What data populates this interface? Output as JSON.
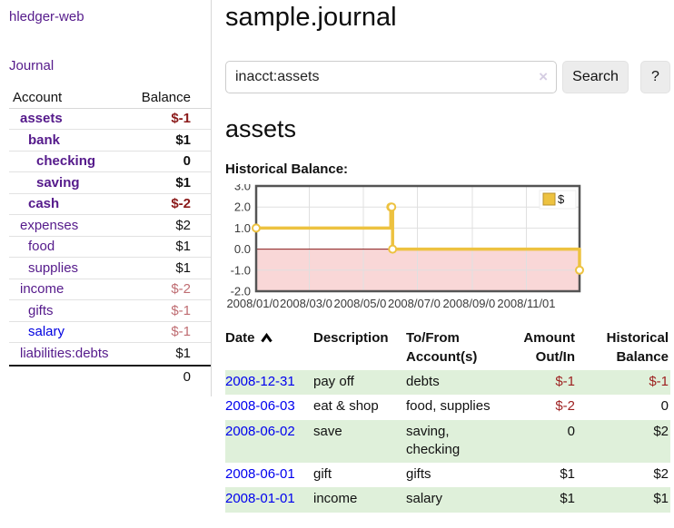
{
  "app": {
    "title": "hledger-web"
  },
  "sidebar": {
    "journal_link": "Journal",
    "account_header": "Account",
    "balance_header": "Balance",
    "accounts": [
      {
        "name": "assets",
        "balance": "$-1"
      },
      {
        "name": "bank",
        "balance": "$1"
      },
      {
        "name": "checking",
        "balance": "0"
      },
      {
        "name": "saving",
        "balance": "$1"
      },
      {
        "name": "cash",
        "balance": "$-2"
      },
      {
        "name": "expenses",
        "balance": "$2"
      },
      {
        "name": "food",
        "balance": "$1"
      },
      {
        "name": "supplies",
        "balance": "$1"
      },
      {
        "name": "income",
        "balance": "$-2"
      },
      {
        "name": "gifts",
        "balance": "$-1"
      },
      {
        "name": "salary",
        "balance": "$-1"
      },
      {
        "name": "liabilities:debts",
        "balance": "$1"
      }
    ],
    "total": "0"
  },
  "main": {
    "title": "sample.journal",
    "search": {
      "value": "inacct:assets",
      "clear_icon": "×",
      "search_button": "Search",
      "help_button": "?"
    },
    "account_heading": "assets",
    "chart_title": "Historical Balance:"
  },
  "register": {
    "headers": {
      "date": "Date",
      "description": "Description",
      "accounts_line1": "To/From",
      "accounts_line2": "Account(s)",
      "amount_line1": "Amount",
      "amount_line2": "Out/In",
      "balance_line1": "Historical",
      "balance_line2": "Balance"
    },
    "rows": [
      {
        "date": "2008-12-31",
        "description": "pay off",
        "accounts": "debts",
        "amount": "$-1",
        "balance": "$-1"
      },
      {
        "date": "2008-06-03",
        "description": "eat & shop",
        "accounts": "food, supplies",
        "amount": "$-2",
        "balance": "0"
      },
      {
        "date": "2008-06-02",
        "description": "save",
        "accounts": "saving, checking",
        "amount": "0",
        "balance": "$2"
      },
      {
        "date": "2008-06-01",
        "description": "gift",
        "accounts": "gifts",
        "amount": "$1",
        "balance": "$2"
      },
      {
        "date": "2008-01-01",
        "description": "income",
        "accounts": "salary",
        "amount": "$1",
        "balance": "$1"
      }
    ]
  },
  "chart_data": {
    "type": "line",
    "line_style": "step",
    "title": "Historical Balance",
    "series": [
      {
        "name": "$",
        "color": "#edc240",
        "points": [
          {
            "date": "2008-01-01",
            "value": 1
          },
          {
            "date": "2008-06-01",
            "value": 2
          },
          {
            "date": "2008-06-02",
            "value": 2
          },
          {
            "date": "2008-06-03",
            "value": 0
          },
          {
            "date": "2008-12-31",
            "value": -1
          }
        ]
      }
    ],
    "ylim": [
      -2,
      3
    ],
    "yticks": [
      "3.0",
      "2.0",
      "1.0",
      "0.0",
      "-1.0",
      "-2.0"
    ],
    "xticks": [
      "2008/01/01",
      "2008/03/01",
      "2008/05/01",
      "2008/07/01",
      "2008/09/01",
      "2008/11/01"
    ],
    "xrange": [
      "2008-01-01",
      "2008-12-31"
    ],
    "legend_position": "top-right",
    "grid": true,
    "negative_region_color": "#f9d7d7",
    "zero_line_color": "#871919"
  },
  "colors": {
    "link_purple": "#551a8b",
    "link_blue": "#0000e0",
    "negative_strong": "#8b1a1a",
    "negative_soft": "#bf6d72",
    "negative_table": "#9d1f1f",
    "row_stripe_green": "#dff0da",
    "series_gold": "#edc240"
  }
}
